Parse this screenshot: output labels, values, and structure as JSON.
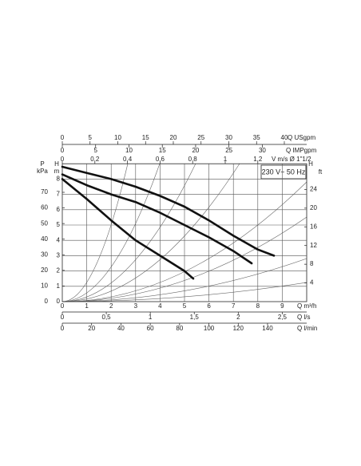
{
  "chart_data": {
    "type": "line",
    "annotation": "230 V~ 50 Hz",
    "x_label": "Q m³/h",
    "xlim": [
      0,
      10
    ],
    "xticks": [
      0,
      1,
      2,
      3,
      4,
      5,
      6,
      7,
      8,
      9
    ],
    "y_label": "H",
    "y_unit": "m",
    "ylim": [
      0,
      9
    ],
    "yticks": [
      0,
      1,
      2,
      3,
      4,
      5,
      6,
      7,
      8
    ],
    "grid": true,
    "series": [
      {
        "color": "#111111",
        "x": [
          0,
          1,
          2,
          3,
          4,
          5,
          6,
          7,
          8,
          8.66
        ],
        "values": [
          8.8,
          8.4,
          8.0,
          7.5,
          6.9,
          6.2,
          5.3,
          4.3,
          3.4,
          3.0
        ]
      },
      {
        "color": "#111111",
        "x": [
          0,
          1,
          2,
          3,
          4,
          5,
          6,
          7,
          7.75
        ],
        "values": [
          8.3,
          7.6,
          7.0,
          6.5,
          5.8,
          5.0,
          4.2,
          3.3,
          2.5
        ]
      },
      {
        "color": "#111111",
        "x": [
          0,
          1,
          2,
          3,
          4,
          5,
          5.36
        ],
        "values": [
          8.0,
          6.7,
          5.3,
          4.0,
          3.0,
          2.0,
          1.5
        ]
      }
    ],
    "secondary_axes": [
      {
        "side": "top",
        "label": "Q USgpm",
        "lim": [
          0,
          44.03
        ],
        "ticks": [
          0,
          5,
          10,
          15,
          20,
          25,
          30,
          35,
          40
        ]
      },
      {
        "side": "top",
        "label": "Q IMPgpm",
        "lim": [
          0,
          36.66
        ],
        "ticks": [
          0,
          5,
          10,
          15,
          20,
          25,
          30
        ]
      },
      {
        "side": "top",
        "label": "V m/s Ø 1\"1/2",
        "lim": [
          0,
          1.5
        ],
        "ticks": [
          0,
          {
            "value": 0.2,
            "label": "0,2"
          },
          {
            "value": 0.4,
            "label": "0,4"
          },
          {
            "value": 0.6,
            "label": "0,6"
          },
          {
            "value": 0.8,
            "label": "0,8"
          },
          1,
          {
            "value": 1.2,
            "label": "1,2"
          }
        ]
      },
      {
        "side": "bottom",
        "label": "Q l/s",
        "lim": [
          0,
          2.778
        ],
        "ticks": [
          0,
          {
            "value": 0.5,
            "label": "0,5"
          },
          1,
          {
            "value": 1.5,
            "label": "1,5"
          },
          2,
          {
            "value": 2.5,
            "label": "2,5"
          }
        ]
      },
      {
        "side": "bottom",
        "label": "Q l/min",
        "lim": [
          0,
          166.7
        ],
        "ticks": [
          0,
          20,
          40,
          60,
          80,
          100,
          120,
          140
        ]
      },
      {
        "side": "left",
        "label": "P",
        "unit": "kPa",
        "lim": [
          0,
          88.3
        ],
        "ticks": [
          0,
          10,
          20,
          30,
          40,
          50,
          60,
          70
        ]
      },
      {
        "side": "right",
        "label": "H",
        "unit": "ft",
        "lim": [
          0,
          29.5
        ],
        "ticks": [
          4,
          8,
          12,
          16,
          20,
          24
        ]
      }
    ]
  }
}
